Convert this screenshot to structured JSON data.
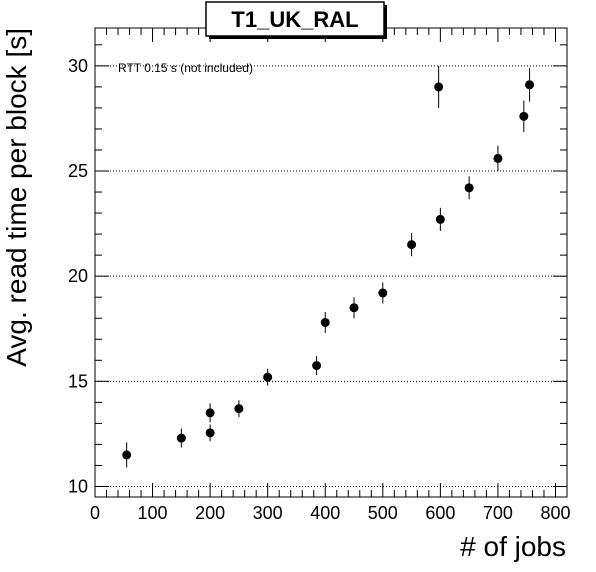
{
  "chart_data": {
    "type": "scatter",
    "title": "T1_UK_RAL",
    "xlabel": "# of jobs",
    "ylabel": "Avg. read time per block [s]",
    "annotation": "RTT 0.15 s (not included)",
    "xlim": [
      0,
      820
    ],
    "ylim": [
      9.5,
      31.8
    ],
    "xticks": [
      0,
      100,
      200,
      300,
      400,
      500,
      600,
      700,
      800
    ],
    "yticks": [
      10,
      15,
      20,
      25,
      30
    ],
    "grid": "horizontal dotted",
    "points": [
      {
        "x": 55,
        "y": 11.5,
        "err": 0.6
      },
      {
        "x": 150,
        "y": 12.3,
        "err": 0.45
      },
      {
        "x": 200,
        "y": 12.55,
        "err": 0.4
      },
      {
        "x": 200,
        "y": 13.5,
        "err": 0.45
      },
      {
        "x": 250,
        "y": 13.7,
        "err": 0.4
      },
      {
        "x": 300,
        "y": 15.2,
        "err": 0.4
      },
      {
        "x": 385,
        "y": 15.75,
        "err": 0.45
      },
      {
        "x": 400,
        "y": 17.8,
        "err": 0.5
      },
      {
        "x": 450,
        "y": 18.5,
        "err": 0.5
      },
      {
        "x": 500,
        "y": 19.2,
        "err": 0.5
      },
      {
        "x": 550,
        "y": 21.5,
        "err": 0.55
      },
      {
        "x": 600,
        "y": 22.7,
        "err": 0.55
      },
      {
        "x": 597,
        "y": 29.0,
        "err": 1.0
      },
      {
        "x": 650,
        "y": 24.2,
        "err": 0.55
      },
      {
        "x": 700,
        "y": 25.6,
        "err": 0.6
      },
      {
        "x": 745,
        "y": 27.6,
        "err": 0.75
      },
      {
        "x": 755,
        "y": 29.1,
        "err": 0.8
      }
    ]
  }
}
